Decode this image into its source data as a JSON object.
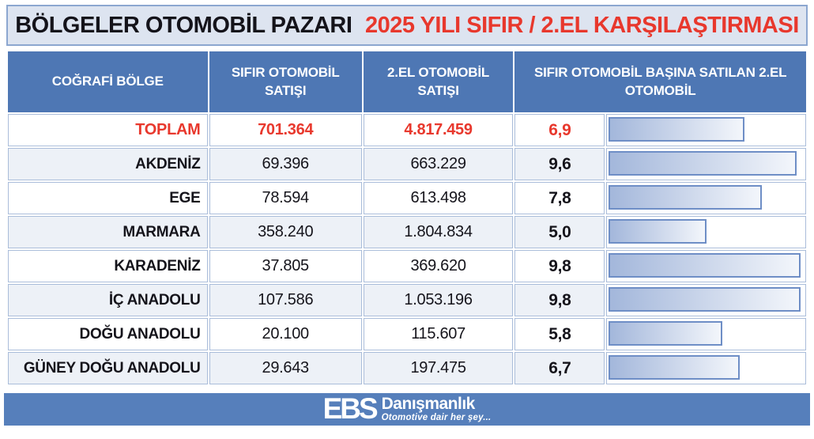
{
  "title": {
    "black_part": "BÖLGELER OTOMOBİL PAZARI",
    "red_part": "2025 YILI SIFIR / 2.EL KARŞILAŞTIRMASI"
  },
  "table": {
    "headers": {
      "region": "COĞRAFİ BÖLGE",
      "new_sales": "SIFIR OTOMOBİL SATIŞI",
      "used_sales": "2.EL OTOMOBİL SATIŞI",
      "ratio": "SIFIR OTOMOBİL BAŞINA SATILAN 2.EL OTOMOBİL"
    },
    "rows": [
      {
        "region": "TOPLAM",
        "new_sales": "701.364",
        "used_sales": "4.817.459",
        "ratio": "6,9",
        "ratio_value": 6.9,
        "highlight": true
      },
      {
        "region": "AKDENİZ",
        "new_sales": "69.396",
        "used_sales": "663.229",
        "ratio": "9,6",
        "ratio_value": 9.6
      },
      {
        "region": "EGE",
        "new_sales": "78.594",
        "used_sales": "613.498",
        "ratio": "7,8",
        "ratio_value": 7.8
      },
      {
        "region": "MARMARA",
        "new_sales": "358.240",
        "used_sales": "1.804.834",
        "ratio": "5,0",
        "ratio_value": 5.0
      },
      {
        "region": "KARADENİZ",
        "new_sales": "37.805",
        "used_sales": "369.620",
        "ratio": "9,8",
        "ratio_value": 9.8
      },
      {
        "region": "İÇ ANADOLU",
        "new_sales": "107.586",
        "used_sales": "1.053.196",
        "ratio": "9,8",
        "ratio_value": 9.8
      },
      {
        "region": "DOĞU ANADOLU",
        "new_sales": "20.100",
        "used_sales": "115.607",
        "ratio": "5,8",
        "ratio_value": 5.8
      },
      {
        "region": "GÜNEY DOĞU ANADOLU",
        "new_sales": "29.643",
        "used_sales": "197.475",
        "ratio": "6,7",
        "ratio_value": 6.7
      }
    ]
  },
  "footer": {
    "logo": "EBS",
    "brand": "Danışmanlık",
    "tagline": "Otomotive dair her şey..."
  },
  "colors": {
    "header_blue": "#4e77b4",
    "footer_blue": "#567fbb",
    "accent_red": "#e8382d",
    "title_bg": "#dde4f0",
    "title_border": "#8ca7d0",
    "stripe_row": "#edf1f7",
    "cell_border": "#aabdda",
    "bar_border": "#6e8ec6",
    "bar_gradient_start": "#a3b7db",
    "bar_gradient_end": "#f3f6fb"
  },
  "chart_data": {
    "type": "bar",
    "orientation": "horizontal",
    "title": "BÖLGELER OTOMOBİL PAZARI 2025 YILI SIFIR / 2.EL KARŞILAŞTIRMASI",
    "categories": [
      "TOPLAM",
      "AKDENİZ",
      "EGE",
      "MARMARA",
      "KARADENİZ",
      "İÇ ANADOLU",
      "DOĞU ANADOLU",
      "GÜNEY DOĞU ANADOLU"
    ],
    "series": [
      {
        "name": "SIFIR OTOMOBİL SATIŞI",
        "values": [
          701364,
          69396,
          78594,
          358240,
          37805,
          107586,
          20100,
          29643
        ]
      },
      {
        "name": "2.EL OTOMOBİL SATIŞI",
        "values": [
          4817459,
          663229,
          613498,
          1804834,
          369620,
          1053196,
          115607,
          197475
        ]
      },
      {
        "name": "SIFIR OTOMOBİL BAŞINA SATILAN 2.EL OTOMOBİL",
        "values": [
          6.9,
          9.6,
          7.8,
          5.0,
          9.8,
          9.8,
          5.8,
          6.7
        ]
      }
    ],
    "bar_series": "SIFIR OTOMOBİL BAŞINA SATILAN 2.EL OTOMOBİL",
    "bar_scale_max": 9.8,
    "xlim": [
      0,
      10
    ],
    "grid": false,
    "legend_position": "none"
  }
}
